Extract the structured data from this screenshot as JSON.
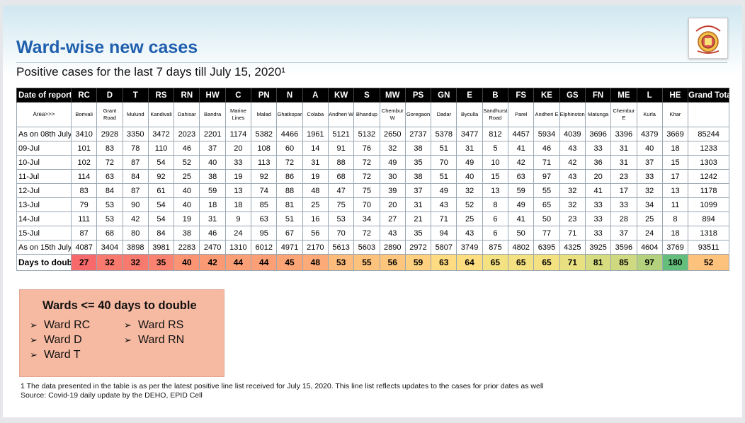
{
  "title": "Ward-wise new cases",
  "subtitle": "Positive cases for the last 7 days till July 15, 2020¹",
  "table": {
    "header_label": "Date of report",
    "grand_total_label": "Grand Total",
    "area_label": "Area>>>",
    "wards": [
      "RC",
      "D",
      "T",
      "RS",
      "RN",
      "HW",
      "C",
      "PN",
      "N",
      "A",
      "KW",
      "S",
      "MW",
      "PS",
      "GN",
      "E",
      "B",
      "FS",
      "KE",
      "GS",
      "FN",
      "ME",
      "L",
      "HE"
    ],
    "areas": [
      "Borivali",
      "Grant Road",
      "Mulund",
      "Kandivali",
      "Dahisar",
      "Bandra",
      "Marine Lines",
      "Malad",
      "Ghatkopar",
      "Colaba",
      "Andheri W",
      "Bhandup",
      "Chembur W",
      "Goregaon",
      "Dadar",
      "Byculla",
      "Sandhurst Road",
      "Parel",
      "Andheri E",
      "Elphinstone",
      "Matunga",
      "Chembur E",
      "Kurla",
      "Khar"
    ],
    "rows": [
      {
        "label": "As on 08th July",
        "values": [
          "3410",
          "2928",
          "3350",
          "3472",
          "2023",
          "2201",
          "1174",
          "5382",
          "4466",
          "1961",
          "5121",
          "5132",
          "2650",
          "2737",
          "5378",
          "3477",
          "812",
          "4457",
          "5934",
          "4039",
          "3696",
          "3396",
          "4379",
          "3669"
        ],
        "total": "85244"
      },
      {
        "label": "09-Jul",
        "values": [
          "101",
          "83",
          "78",
          "110",
          "46",
          "37",
          "20",
          "108",
          "60",
          "14",
          "91",
          "76",
          "32",
          "38",
          "51",
          "31",
          "5",
          "41",
          "46",
          "43",
          "33",
          "31",
          "40",
          "18"
        ],
        "total": "1233"
      },
      {
        "label": "10-Jul",
        "values": [
          "102",
          "72",
          "87",
          "54",
          "52",
          "40",
          "33",
          "113",
          "72",
          "31",
          "88",
          "72",
          "49",
          "35",
          "70",
          "49",
          "10",
          "42",
          "71",
          "42",
          "36",
          "31",
          "37",
          "15"
        ],
        "total": "1303"
      },
      {
        "label": "11-Jul",
        "values": [
          "114",
          "63",
          "84",
          "92",
          "25",
          "38",
          "19",
          "92",
          "86",
          "19",
          "68",
          "72",
          "30",
          "38",
          "51",
          "40",
          "15",
          "63",
          "97",
          "43",
          "20",
          "23",
          "33",
          "17"
        ],
        "total": "1242"
      },
      {
        "label": "12-Jul",
        "values": [
          "83",
          "84",
          "87",
          "61",
          "40",
          "59",
          "13",
          "74",
          "88",
          "48",
          "47",
          "75",
          "39",
          "37",
          "49",
          "32",
          "13",
          "59",
          "55",
          "32",
          "41",
          "17",
          "32",
          "13"
        ],
        "total": "1178"
      },
      {
        "label": "13-Jul",
        "values": [
          "79",
          "53",
          "90",
          "54",
          "40",
          "18",
          "18",
          "85",
          "81",
          "25",
          "75",
          "70",
          "20",
          "31",
          "43",
          "52",
          "8",
          "49",
          "65",
          "32",
          "33",
          "33",
          "34",
          "11"
        ],
        "total": "1099"
      },
      {
        "label": "14-Jul",
        "values": [
          "111",
          "53",
          "42",
          "54",
          "19",
          "31",
          "9",
          "63",
          "51",
          "16",
          "53",
          "34",
          "27",
          "21",
          "71",
          "25",
          "6",
          "41",
          "50",
          "23",
          "33",
          "28",
          "25",
          "8"
        ],
        "total": "894"
      },
      {
        "label": "15-Jul",
        "values": [
          "87",
          "68",
          "80",
          "84",
          "38",
          "46",
          "24",
          "95",
          "67",
          "56",
          "70",
          "72",
          "43",
          "35",
          "94",
          "43",
          "6",
          "50",
          "77",
          "71",
          "33",
          "37",
          "24",
          "18"
        ],
        "total": "1318"
      },
      {
        "label": "As on 15th July",
        "values": [
          "4087",
          "3404",
          "3898",
          "3981",
          "2283",
          "2470",
          "1310",
          "6012",
          "4971",
          "2170",
          "5613",
          "5603",
          "2890",
          "2972",
          "5807",
          "3749",
          "875",
          "4802",
          "6395",
          "4325",
          "3925",
          "3596",
          "4604",
          "3769"
        ],
        "total": "93511"
      }
    ],
    "double": {
      "label": "Days to double",
      "values": [
        "27",
        "32",
        "32",
        "35",
        "40",
        "42",
        "44",
        "44",
        "45",
        "48",
        "53",
        "55",
        "56",
        "59",
        "63",
        "64",
        "65",
        "65",
        "65",
        "71",
        "81",
        "85",
        "97",
        "180"
      ],
      "total": "52",
      "colors": [
        "#f8696b",
        "#f8796d",
        "#f8796d",
        "#f98370",
        "#fa9473",
        "#fa9a74",
        "#fba076",
        "#fba076",
        "#fba476",
        "#fcaa78",
        "#fdbc7b",
        "#fdc37c",
        "#fec67d",
        "#fed07f",
        "#ffdb81",
        "#fedd81",
        "#f4e182",
        "#f4e182",
        "#f4e182",
        "#e9e082",
        "#d7dc81",
        "#cfd980",
        "#b4d27e",
        "#63be7b"
      ],
      "total_color": "#fdc27c"
    }
  },
  "note_box": {
    "title": "Wards <= 40 days to double",
    "col1": [
      "Ward RC",
      "Ward D",
      "Ward T"
    ],
    "col2": [
      "Ward RS",
      "Ward RN"
    ]
  },
  "footnote": {
    "line1": "1 The data presented in the table is as per the latest positive line list received for July 15, 2020. This line list reflects updates to the cases for prior dates as well",
    "line2": "Source: Covid-19 daily update by the DEHO, EPID Cell"
  },
  "logo_icon": "municipal-seal-icon"
}
